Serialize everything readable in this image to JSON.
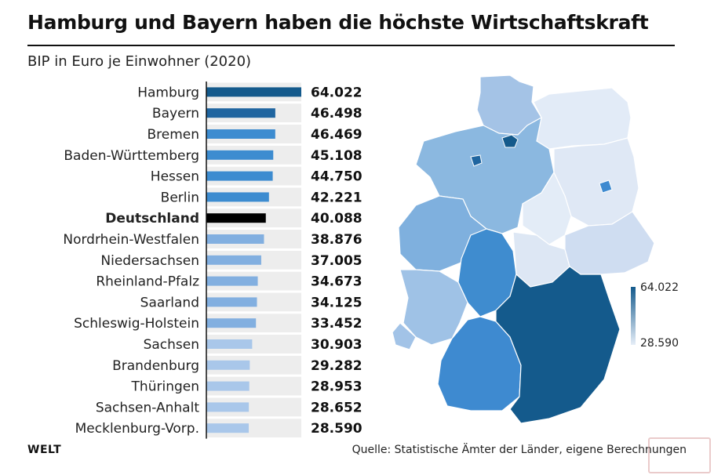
{
  "header": {
    "title": "Hamburg und Bayern haben die höchste Wirtschaftskraft",
    "subtitle": "BIP in Euro je Einwohner (2020)"
  },
  "footer": {
    "logo": "WELT",
    "source": "Quelle: Statistische Ämter der Länder, eigene Berechnungen"
  },
  "chart_data": {
    "type": "bar",
    "orientation": "horizontal",
    "title": "Hamburg und Bayern haben die höchste Wirtschaftskraft",
    "subtitle": "BIP in Euro je Einwohner (2020)",
    "categories": [
      "Hamburg",
      "Bayern",
      "Bremen",
      "Baden-Württemberg",
      "Hessen",
      "Berlin",
      "Deutschland",
      "Nordrhein-Westfalen",
      "Niedersachsen",
      "Rheinland-Pfalz",
      "Saarland",
      "Schleswig-Holstein",
      "Sachsen",
      "Brandenburg",
      "Thüringen",
      "Sachsen-Anhalt",
      "Mecklenburg-Vorp."
    ],
    "values": [
      64022,
      46498,
      46469,
      45108,
      44750,
      42221,
      40088,
      38876,
      37005,
      34673,
      34125,
      33452,
      30903,
      29282,
      28953,
      28652,
      28590
    ],
    "value_labels": [
      "64.022",
      "46.498",
      "46.469",
      "45.108",
      "44.750",
      "42.221",
      "40.088",
      "38.876",
      "37.005",
      "34.673",
      "34.125",
      "33.452",
      "30.903",
      "29.282",
      "28.953",
      "28.652",
      "28.590"
    ],
    "highlight": "Deutschland",
    "xlim": [
      0,
      64022
    ],
    "grid": false,
    "colors": {
      "darkest": "#145a8c",
      "dark": "#1f65a0",
      "medium": "#3d8cd0",
      "light": "#82afe0",
      "lightest": "#a9c7ea",
      "highlight": "#000000",
      "row_band": "#ededed"
    },
    "map_legend": {
      "max_label": "64.022",
      "min_label": "28.590"
    }
  }
}
